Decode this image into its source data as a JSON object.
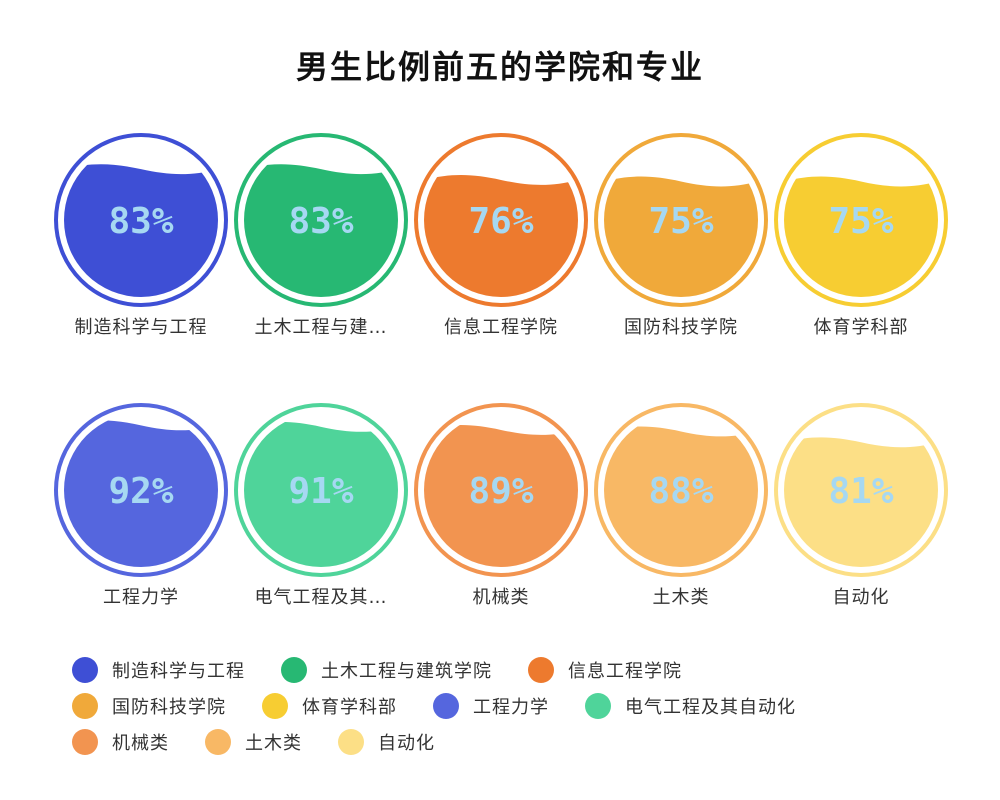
{
  "title": "男生比例前五的学院和专业",
  "chart_data": {
    "type": "bar",
    "title": "男生比例前五的学院和专业",
    "unit": "%",
    "groups": [
      {
        "categories": [
          "制造科学与工程",
          "土木工程与建…",
          "信息工程学院",
          "国防科技学院",
          "体育学科部"
        ],
        "values": [
          83,
          83,
          76,
          75,
          75
        ],
        "value_labels": [
          "83%",
          "83%",
          "76%",
          "75%",
          "75%"
        ],
        "colors": [
          "#3e4fd5",
          "#27b873",
          "#ed7a2e",
          "#f0a93a",
          "#f7cd32"
        ]
      },
      {
        "categories": [
          "工程力学",
          "电气工程及其…",
          "机械类",
          "土木类",
          "自动化"
        ],
        "values": [
          92,
          91,
          89,
          88,
          81
        ],
        "value_labels": [
          "92%",
          "91%",
          "89%",
          "88%",
          "81%"
        ],
        "colors": [
          "#5566de",
          "#4fd49a",
          "#f29450",
          "#f8b865",
          "#fcdf86"
        ]
      }
    ],
    "percent_text_color": "#a6d8f2",
    "legend": {
      "position": "bottom",
      "rows": [
        [
          {
            "label": "制造科学与工程",
            "color": "#3e4fd5"
          },
          {
            "label": "土木工程与建筑学院",
            "color": "#27b873"
          },
          {
            "label": "信息工程学院",
            "color": "#ed7a2e"
          }
        ],
        [
          {
            "label": "国防科技学院",
            "color": "#f0a93a"
          },
          {
            "label": "体育学科部",
            "color": "#f7cd32"
          },
          {
            "label": "工程力学",
            "color": "#5566de"
          },
          {
            "label": "电气工程及其自动化",
            "color": "#4fd49a"
          }
        ],
        [
          {
            "label": "机械类",
            "color": "#f29450"
          },
          {
            "label": "土木类",
            "color": "#f8b865"
          },
          {
            "label": "自动化",
            "color": "#fcdf86"
          }
        ]
      ]
    }
  }
}
